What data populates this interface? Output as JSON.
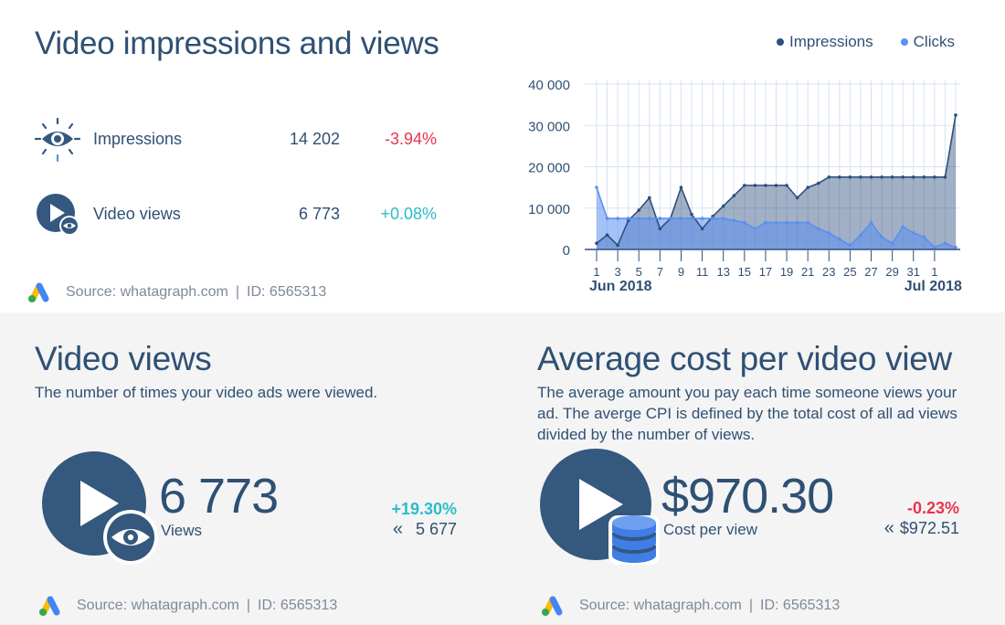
{
  "top": {
    "title": "Video impressions and views",
    "metrics": [
      {
        "label": "Impressions",
        "value": "14 202",
        "change": "-3.94%",
        "trend": "negative"
      },
      {
        "label": "Video views",
        "value": "6 773",
        "change": "+0.08%",
        "trend": "positive"
      }
    ],
    "source": {
      "text": "Source: whatagraph.com",
      "sep": "|",
      "id": "ID: 6565313"
    },
    "legend": [
      {
        "label": "Impressions",
        "color": "#2f4f7f"
      },
      {
        "label": "Clicks",
        "color": "#5b8ff0"
      }
    ]
  },
  "chart_data": {
    "type": "area",
    "title": "",
    "xlabel": "",
    "ylabel": "",
    "ylim": [
      0,
      40000
    ],
    "y_ticks": [
      "40 000",
      "30 000",
      "20 000",
      "10 000",
      "0"
    ],
    "y_tick_values": [
      40000,
      30000,
      20000,
      10000,
      0
    ],
    "x_tick_labels": [
      "1",
      "3",
      "5",
      "7",
      "9",
      "11",
      "13",
      "15",
      "17",
      "19",
      "21",
      "23",
      "25",
      "27",
      "29",
      "31",
      "1"
    ],
    "x_tick_positions": [
      0,
      2,
      4,
      6,
      8,
      10,
      12,
      14,
      16,
      18,
      20,
      22,
      24,
      26,
      28,
      30,
      32
    ],
    "month_labels": [
      {
        "label": "Jun 2018",
        "at": 0
      },
      {
        "label": "Jul 2018",
        "at": 32
      }
    ],
    "grid": true,
    "legend_position": "top-right",
    "series": [
      {
        "name": "Impressions",
        "color": "#2f4f7f",
        "values": [
          1500,
          3500,
          1000,
          7000,
          9500,
          12500,
          5000,
          7500,
          15000,
          8500,
          5000,
          8000,
          10500,
          13000,
          15500,
          15500,
          15500,
          15500,
          15500,
          12500,
          15000,
          16000,
          17500,
          17500,
          17500,
          17500,
          17500,
          17500,
          17500,
          17500,
          17500,
          17500,
          17500,
          17500,
          32500
        ]
      },
      {
        "name": "Clicks",
        "color": "#5b8ff0",
        "values": [
          15000,
          7500,
          7500,
          7500,
          7500,
          7500,
          7500,
          7500,
          7500,
          7500,
          7500,
          7500,
          7500,
          7000,
          6500,
          5000,
          6500,
          6500,
          6500,
          6500,
          6500,
          5000,
          4000,
          2500,
          1000,
          3500,
          6500,
          3000,
          1500,
          5500,
          4000,
          3000,
          500,
          1500,
          500
        ]
      }
    ]
  },
  "video_views": {
    "title": "Video views",
    "description": "The number of times your video ads were viewed.",
    "value": "6 773",
    "value_label": "Views",
    "delta": "+19.30%",
    "prev_arrow": "«",
    "prev_value": "5 677",
    "source": {
      "text": "Source: whatagraph.com",
      "sep": "|",
      "id": "ID: 6565313"
    }
  },
  "avg_cost": {
    "title": "Average cost per video view",
    "description_lines": [
      "The average amount you pay each time someone views your",
      "ad. The averge CPI is defined by the total cost of all ad views",
      "divided by the number of views."
    ],
    "value": "$970.30",
    "value_label": "Cost per view",
    "delta": "-0.23%",
    "prev_arrow": "«",
    "prev_value": "$972.51",
    "source": {
      "text": "Source: whatagraph.com",
      "sep": "|",
      "id": "ID: 6565313"
    }
  },
  "colors": {
    "primary": "#2f5074",
    "negative": "#e8344e",
    "positive": "#2bbdc9",
    "icon_fill": "#34587e",
    "accent_blue": "#3f7ee6"
  },
  "icons": [
    "eye-icon",
    "play-eye-icon",
    "google-ads-logo",
    "play-icon",
    "coin-stack-icon"
  ]
}
